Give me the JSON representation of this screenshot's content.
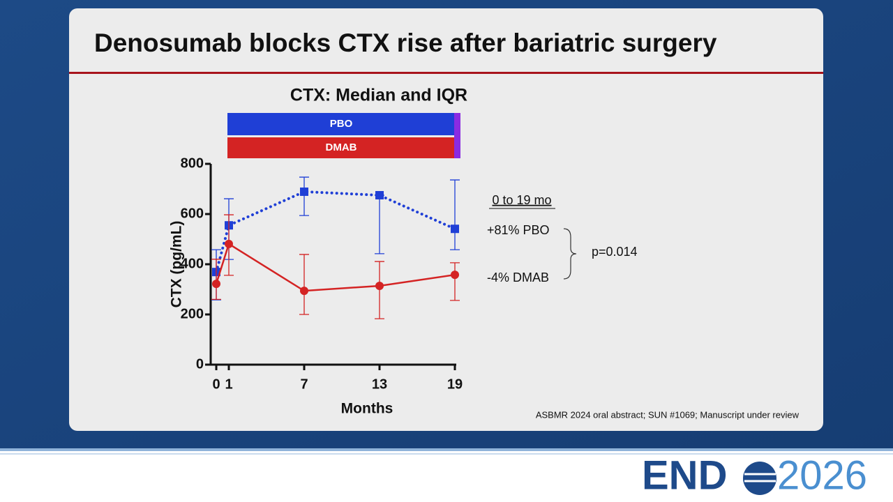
{
  "slide": {
    "title": "Denosumab blocks CTX rise after bariatric surgery",
    "footnote": "ASBMR 2024 oral abstract; SUN #1069; Manuscript under review",
    "logo": {
      "left": "END",
      "right": "2026"
    }
  },
  "chart_data": {
    "type": "line",
    "title": "CTX: Median and IQR",
    "x_label": "Months",
    "y_label": "CTX (pg/mL)",
    "x": [
      0,
      1,
      7,
      13,
      19
    ],
    "xlim": [
      0,
      19
    ],
    "xticks": [
      0,
      1,
      7,
      13,
      19
    ],
    "ylim": [
      0,
      800
    ],
    "yticks": [
      0,
      200,
      400,
      600,
      800
    ],
    "grid": false,
    "series": [
      {
        "name": "PBO",
        "color": "#1f3fd6",
        "line_style": "dotted",
        "marker": "square",
        "values": [
          369,
          555,
          689,
          675,
          541
        ],
        "lower": [
          258,
          419,
          594,
          442,
          458
        ],
        "upper": [
          458,
          661,
          747,
          675,
          736
        ]
      },
      {
        "name": "DMAB",
        "color": "#d42323",
        "line_style": "solid",
        "marker": "circle",
        "values": [
          322,
          481,
          294,
          314,
          358
        ],
        "lower": [
          260,
          356,
          200,
          183,
          256
        ],
        "upper": [
          420,
          597,
          439,
          411,
          406
        ]
      }
    ],
    "annotations": {
      "period": "0 to 19 mo",
      "pbo_change": "+81% PBO",
      "dmab_change": "-4% DMAB",
      "p_value": "p=0.014"
    }
  }
}
